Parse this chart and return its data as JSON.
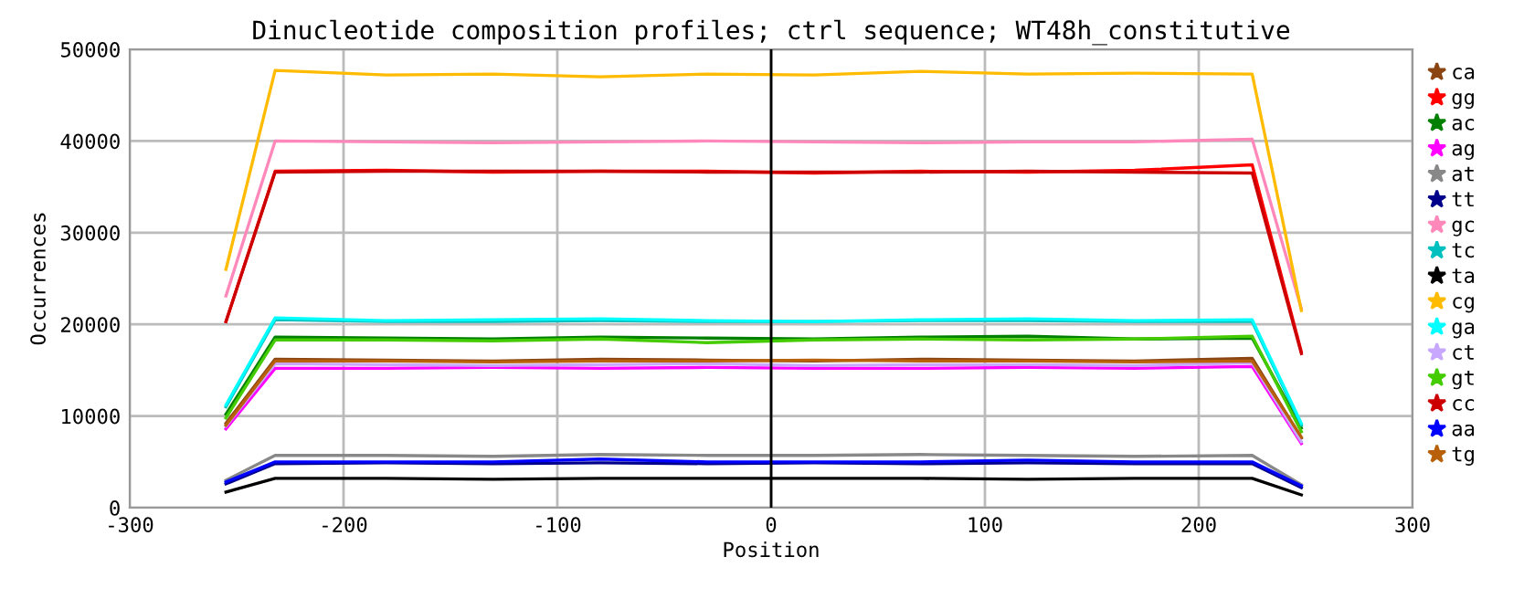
{
  "chart_data": {
    "type": "line",
    "title": "Dinucleotide composition profiles; ctrl sequence; WT48h_constitutive",
    "xlabel": "Position",
    "ylabel": "Occurrences",
    "x": [
      -255,
      -232,
      -180,
      -130,
      -80,
      -30,
      20,
      70,
      120,
      170,
      225,
      248
    ],
    "series": [
      {
        "name": "ca",
        "color": "#8b4513",
        "values": [
          9200,
          16200,
          16100,
          16000,
          16200,
          16100,
          16000,
          16200,
          16100,
          16000,
          16300,
          7600
        ]
      },
      {
        "name": "gg",
        "color": "#ff0000",
        "values": [
          20300,
          36700,
          36800,
          36600,
          36700,
          36700,
          36500,
          36700,
          36600,
          36800,
          37400,
          17000
        ]
      },
      {
        "name": "ac",
        "color": "#008000",
        "values": [
          10200,
          18600,
          18500,
          18400,
          18600,
          18500,
          18400,
          18600,
          18700,
          18400,
          18500,
          8700
        ]
      },
      {
        "name": "ag",
        "color": "#ff00ff",
        "values": [
          8600,
          15200,
          15200,
          15300,
          15200,
          15300,
          15200,
          15200,
          15300,
          15200,
          15400,
          7000
        ]
      },
      {
        "name": "at",
        "color": "#888888",
        "values": [
          3000,
          5700,
          5700,
          5600,
          5800,
          5700,
          5700,
          5800,
          5700,
          5600,
          5700,
          2500
        ]
      },
      {
        "name": "tt",
        "color": "#00008b",
        "values": [
          2600,
          4800,
          4900,
          4800,
          4900,
          4800,
          4900,
          4800,
          4900,
          4800,
          4800,
          2200
        ]
      },
      {
        "name": "gc",
        "color": "#ff88bb",
        "values": [
          23100,
          40000,
          39900,
          39800,
          39900,
          40000,
          39900,
          39800,
          39900,
          39900,
          40200,
          21700
        ]
      },
      {
        "name": "tc",
        "color": "#00bfbf",
        "values": [
          11000,
          20500,
          20300,
          20300,
          20400,
          20300,
          20300,
          20400,
          20400,
          20300,
          20300,
          9000
        ]
      },
      {
        "name": "ta",
        "color": "#000000",
        "values": [
          1700,
          3200,
          3200,
          3100,
          3200,
          3200,
          3200,
          3200,
          3100,
          3200,
          3200,
          1400
        ]
      },
      {
        "name": "cg",
        "color": "#ffbb00",
        "values": [
          26000,
          47700,
          47200,
          47300,
          47000,
          47300,
          47200,
          47600,
          47300,
          47400,
          47300,
          21500
        ]
      },
      {
        "name": "ga",
        "color": "#00ffff",
        "values": [
          11200,
          20700,
          20400,
          20500,
          20600,
          20400,
          20300,
          20500,
          20600,
          20400,
          20500,
          9200
        ]
      },
      {
        "name": "ct",
        "color": "#c8a8ff",
        "values": [
          8900,
          15700,
          15600,
          15500,
          15600,
          15700,
          15500,
          15600,
          15600,
          15500,
          15800,
          7200
        ]
      },
      {
        "name": "gt",
        "color": "#44cc00",
        "values": [
          9800,
          18300,
          18300,
          18200,
          18400,
          18000,
          18300,
          18400,
          18300,
          18400,
          18700,
          8300
        ]
      },
      {
        "name": "cc",
        "color": "#cc0000",
        "values": [
          20300,
          36600,
          36700,
          36700,
          36700,
          36600,
          36600,
          36600,
          36700,
          36600,
          36500,
          16800
        ]
      },
      {
        "name": "aa",
        "color": "#0000ff",
        "values": [
          2800,
          5000,
          5000,
          5000,
          5300,
          5000,
          5000,
          5000,
          5200,
          5000,
          5000,
          2400
        ]
      },
      {
        "name": "tg",
        "color": "#b8600a",
        "values": [
          9000,
          16000,
          16000,
          15900,
          16000,
          16000,
          16100,
          16000,
          16000,
          15900,
          16000,
          7700
        ]
      }
    ],
    "xlim": [
      -300,
      300
    ],
    "ylim": [
      0,
      50000
    ],
    "xticks": [
      -300,
      -200,
      -100,
      0,
      100,
      200,
      300
    ],
    "yticks": [
      0,
      10000,
      20000,
      30000,
      40000,
      50000
    ],
    "ref_lines": [
      {
        "axis": "x",
        "value": 0,
        "color": "#000000"
      }
    ],
    "grid": true,
    "legend": "right",
    "line_style": "solid"
  }
}
